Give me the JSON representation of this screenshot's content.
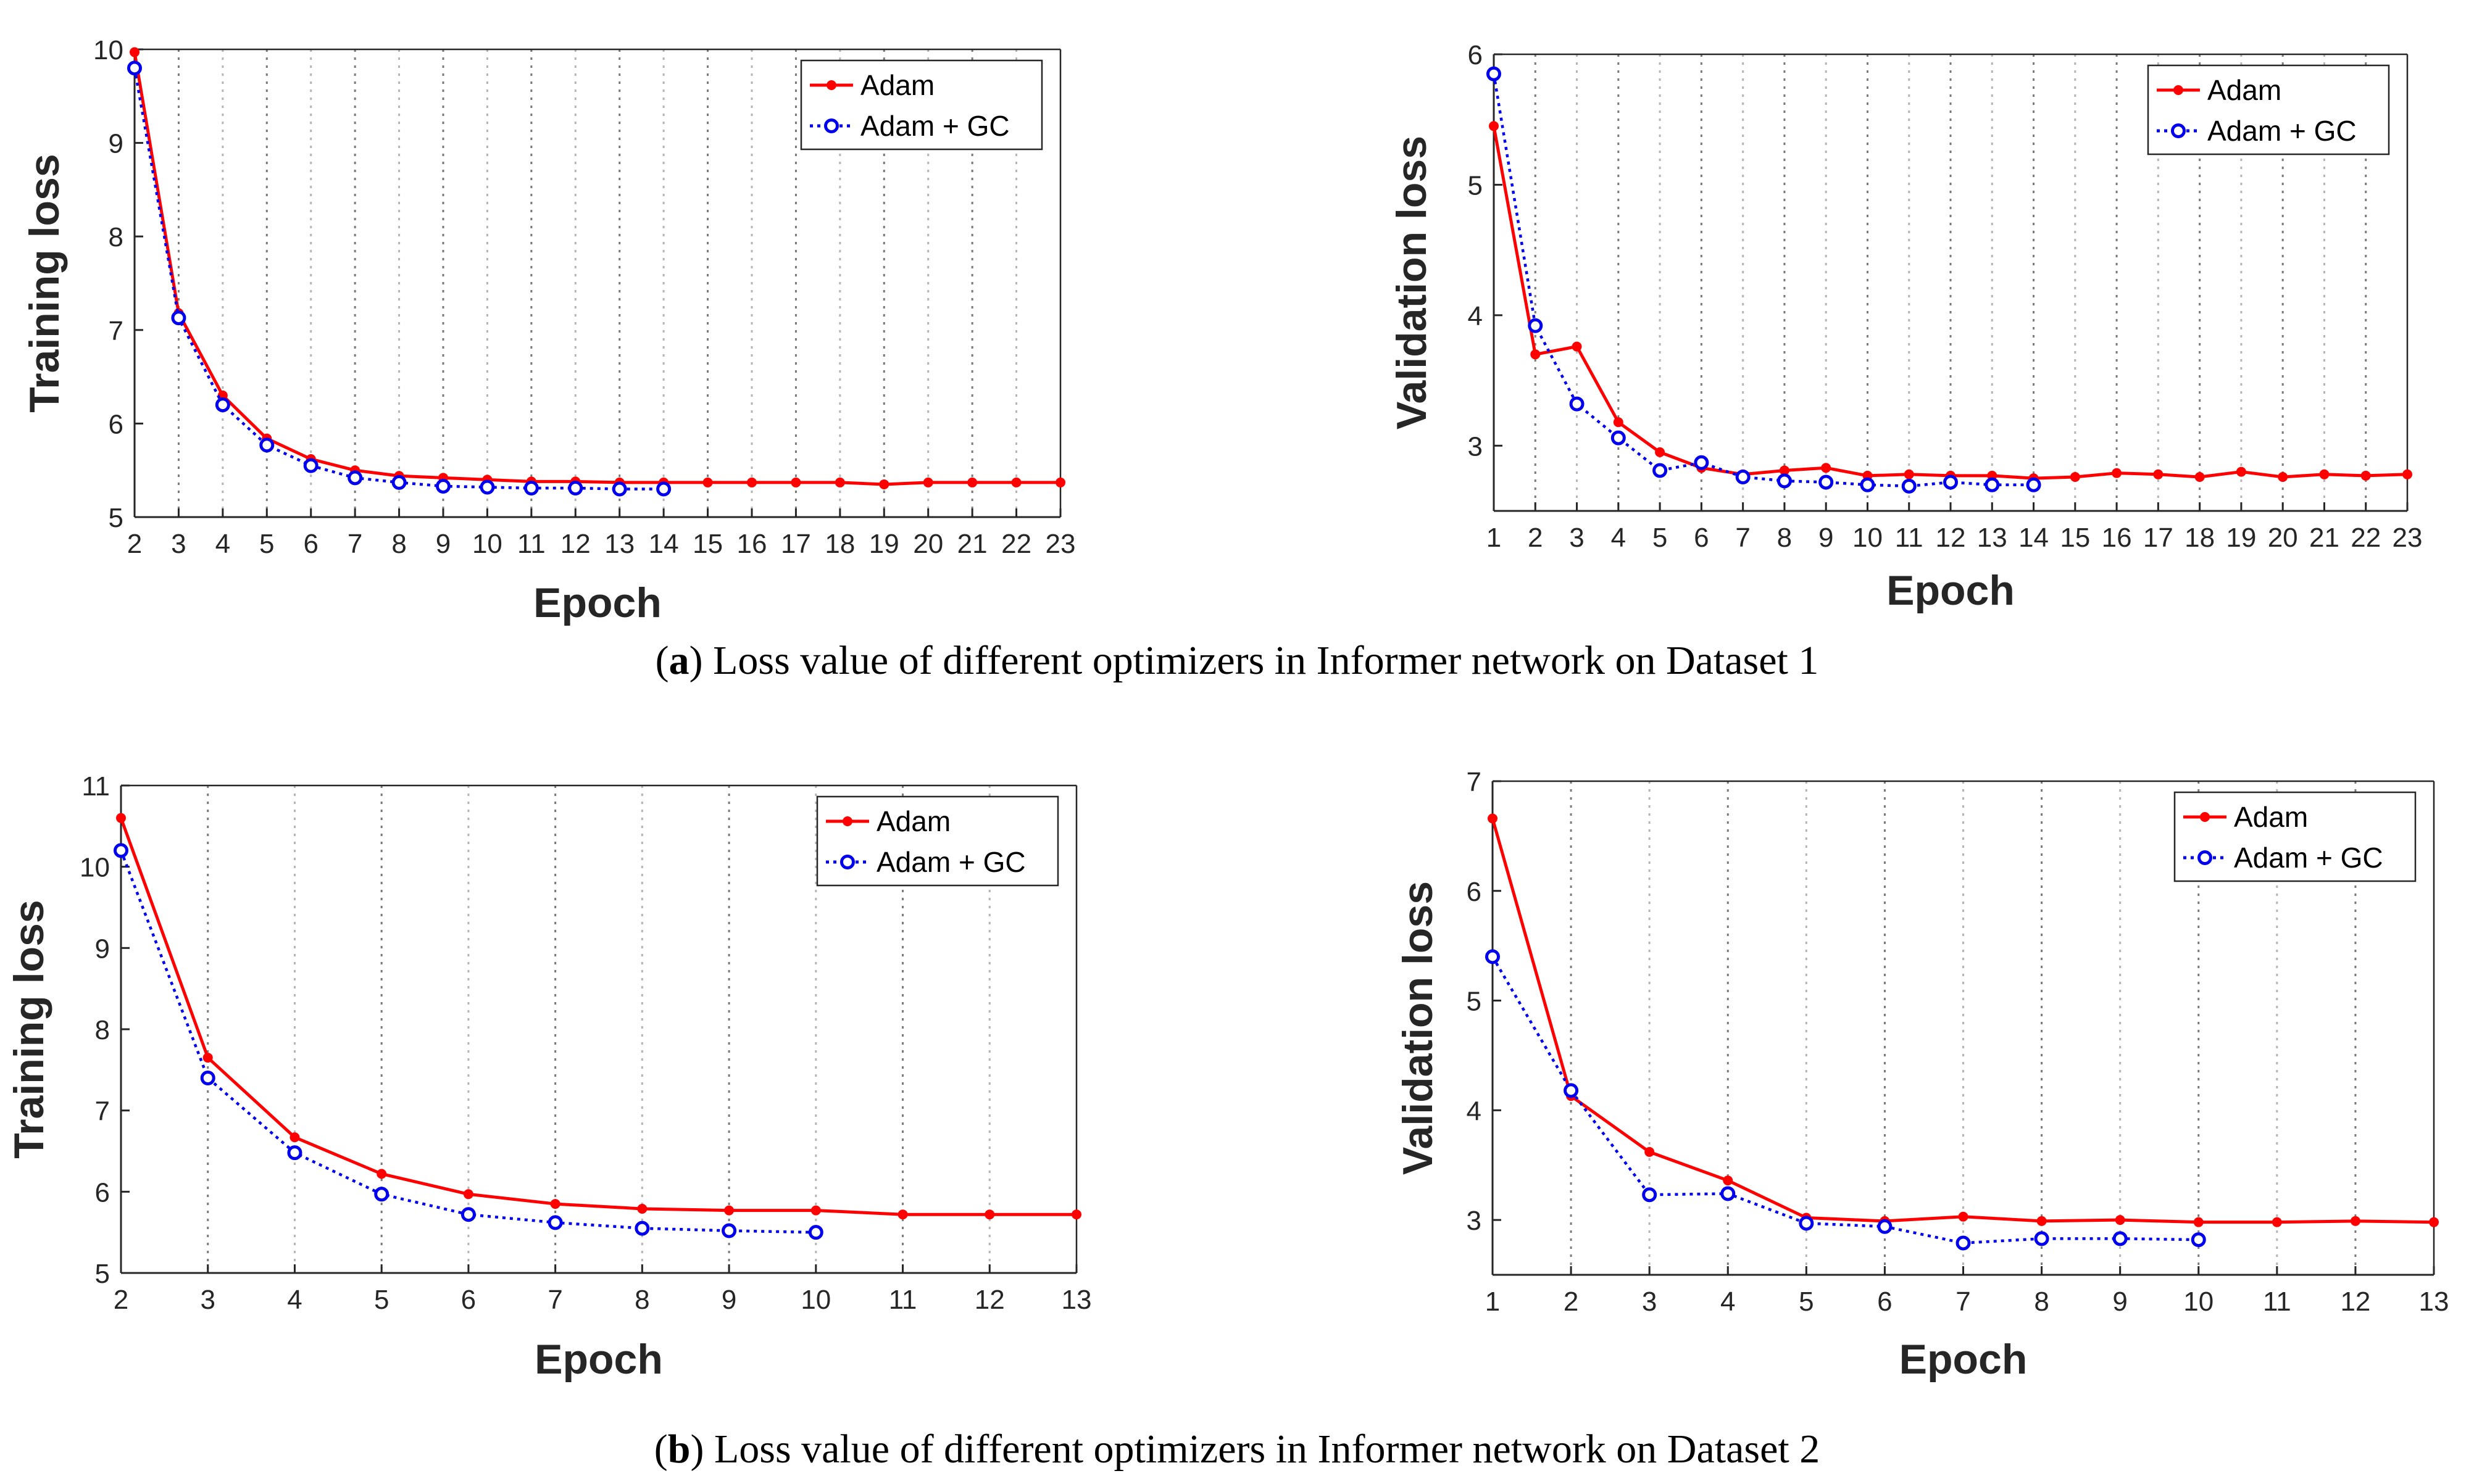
{
  "captions": [
    {
      "letter": "a",
      "text": ") Loss value of different optimizers in Informer network on Dataset 1"
    },
    {
      "letter": "b",
      "text": ") Loss value of different optimizers in Informer network on Dataset 2"
    }
  ],
  "colors": {
    "adam": "#ff0000",
    "adam_gc": "#0000ee",
    "axis": "#262626"
  },
  "chart_data": [
    {
      "id": "a-left",
      "type": "line",
      "xlabel": "Epoch",
      "ylabel": "Training loss",
      "xlim": [
        2,
        23
      ],
      "ylim": [
        5,
        10
      ],
      "xticks": [
        2,
        3,
        4,
        5,
        6,
        7,
        8,
        9,
        10,
        11,
        12,
        13,
        14,
        15,
        16,
        17,
        18,
        19,
        20,
        21,
        22,
        23
      ],
      "yticks": [
        5,
        6,
        7,
        8,
        9,
        10
      ],
      "legend": "top-right",
      "series": [
        {
          "name": "Adam",
          "x": [
            2,
            3,
            4,
            5,
            6,
            7,
            8,
            9,
            10,
            11,
            12,
            13,
            14,
            15,
            16,
            17,
            18,
            19,
            20,
            21,
            22,
            23
          ],
          "values": [
            9.97,
            7.18,
            6.3,
            5.84,
            5.62,
            5.5,
            5.44,
            5.42,
            5.4,
            5.38,
            5.38,
            5.37,
            5.37,
            5.37,
            5.37,
            5.37,
            5.37,
            5.35,
            5.37,
            5.37,
            5.37,
            5.37
          ]
        },
        {
          "name": "Adam + GC",
          "x": [
            2,
            3,
            4,
            5,
            6,
            7,
            8,
            9,
            10,
            11,
            12,
            13,
            14
          ],
          "values": [
            9.8,
            7.13,
            6.2,
            5.77,
            5.55,
            5.42,
            5.37,
            5.33,
            5.32,
            5.31,
            5.31,
            5.3,
            5.3
          ]
        }
      ]
    },
    {
      "id": "a-right",
      "type": "line",
      "xlabel": "Epoch",
      "ylabel": "Validation loss",
      "xlim": [
        1,
        23
      ],
      "ylim": [
        2.5,
        6
      ],
      "xticks": [
        1,
        2,
        3,
        4,
        5,
        6,
        7,
        8,
        9,
        10,
        11,
        12,
        13,
        14,
        15,
        16,
        17,
        18,
        19,
        20,
        21,
        22,
        23
      ],
      "yticks": [
        3,
        4,
        5,
        6
      ],
      "legend": "top-right",
      "series": [
        {
          "name": "Adam",
          "x": [
            1,
            2,
            3,
            4,
            5,
            6,
            7,
            8,
            9,
            10,
            11,
            12,
            13,
            14,
            15,
            16,
            17,
            18,
            19,
            20,
            21,
            22,
            23
          ],
          "values": [
            5.45,
            3.7,
            3.76,
            3.18,
            2.95,
            2.83,
            2.78,
            2.81,
            2.83,
            2.77,
            2.78,
            2.77,
            2.77,
            2.75,
            2.76,
            2.79,
            2.78,
            2.76,
            2.8,
            2.76,
            2.78,
            2.77,
            2.78
          ]
        },
        {
          "name": "Adam + GC",
          "x": [
            1,
            2,
            3,
            4,
            5,
            6,
            7,
            8,
            9,
            10,
            11,
            12,
            13,
            14
          ],
          "values": [
            5.85,
            3.92,
            3.32,
            3.06,
            2.81,
            2.87,
            2.76,
            2.73,
            2.72,
            2.7,
            2.69,
            2.72,
            2.7,
            2.7
          ]
        }
      ]
    },
    {
      "id": "b-left",
      "type": "line",
      "xlabel": "Epoch",
      "ylabel": "Training loss",
      "xlim": [
        2,
        13
      ],
      "ylim": [
        5,
        11
      ],
      "xticks": [
        2,
        3,
        4,
        5,
        6,
        7,
        8,
        9,
        10,
        11,
        12,
        13
      ],
      "yticks": [
        5,
        6,
        7,
        8,
        9,
        10,
        11
      ],
      "legend": "top-right",
      "series": [
        {
          "name": "Adam",
          "x": [
            2,
            3,
            4,
            5,
            6,
            7,
            8,
            9,
            10,
            11,
            12,
            13
          ],
          "values": [
            10.6,
            7.65,
            6.67,
            6.22,
            5.97,
            5.85,
            5.79,
            5.77,
            5.77,
            5.72,
            5.72,
            5.72
          ]
        },
        {
          "name": "Adam + GC",
          "x": [
            2,
            3,
            4,
            5,
            6,
            7,
            8,
            9,
            10
          ],
          "values": [
            10.2,
            7.4,
            6.48,
            5.97,
            5.72,
            5.62,
            5.55,
            5.52,
            5.5
          ]
        }
      ]
    },
    {
      "id": "b-right",
      "type": "line",
      "xlabel": "Epoch",
      "ylabel": "Validation loss",
      "xlim": [
        1,
        13
      ],
      "ylim": [
        2.5,
        7
      ],
      "xticks": [
        1,
        2,
        3,
        4,
        5,
        6,
        7,
        8,
        9,
        10,
        11,
        12,
        13
      ],
      "yticks": [
        3,
        4,
        5,
        6,
        7
      ],
      "legend": "top-right",
      "series": [
        {
          "name": "Adam",
          "x": [
            1,
            2,
            3,
            4,
            5,
            6,
            7,
            8,
            9,
            10,
            11,
            12,
            13
          ],
          "values": [
            6.66,
            4.13,
            3.62,
            3.36,
            3.02,
            2.99,
            3.03,
            2.99,
            3.0,
            2.98,
            2.98,
            2.99,
            2.98
          ]
        },
        {
          "name": "Adam + GC",
          "x": [
            1,
            2,
            3,
            4,
            5,
            6,
            7,
            8,
            9,
            10
          ],
          "values": [
            5.4,
            4.18,
            3.23,
            3.24,
            2.97,
            2.94,
            2.79,
            2.83,
            2.83,
            2.82
          ]
        }
      ]
    }
  ]
}
